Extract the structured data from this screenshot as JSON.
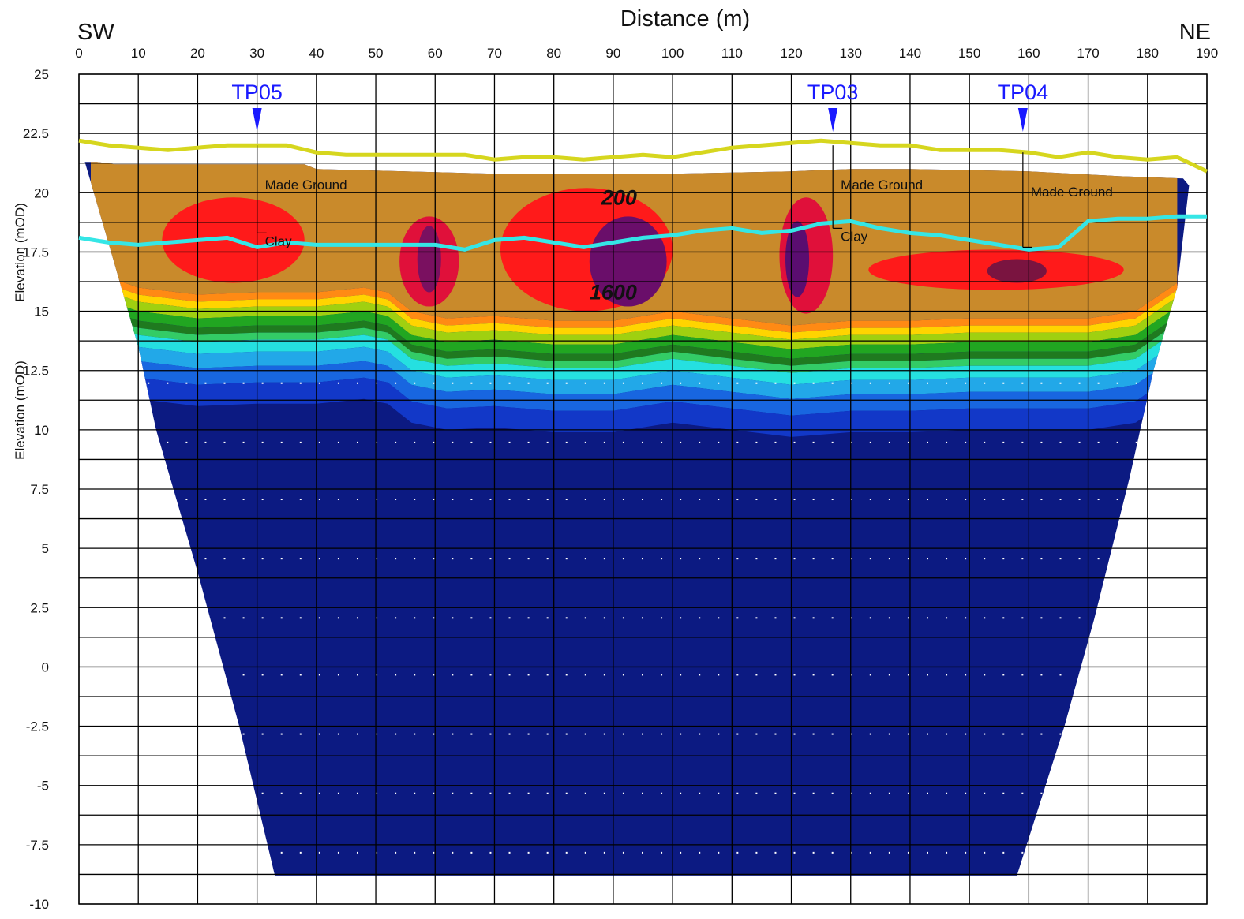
{
  "chart_data": {
    "type": "heatmap",
    "title": "Distance (m)",
    "xlabel": "Distance (m)",
    "ylabel": "Elevation (mOD)",
    "ylabel_repeat": "Elevation (mOD)",
    "direction_left": "SW",
    "direction_right": "NE",
    "xlim": [
      0,
      190
    ],
    "ylim": [
      -10,
      25
    ],
    "x_ticks": [
      {
        "v": 0,
        "label": "0"
      },
      {
        "v": 10,
        "label": "10"
      },
      {
        "v": 20,
        "label": "20"
      },
      {
        "v": 30,
        "label": "30"
      },
      {
        "v": 40,
        "label": "40"
      },
      {
        "v": 50,
        "label": "50"
      },
      {
        "v": 60,
        "label": "60"
      },
      {
        "v": 70,
        "label": "70"
      },
      {
        "v": 80,
        "label": "80"
      },
      {
        "v": 90,
        "label": "90"
      },
      {
        "v": 100,
        "label": "100"
      },
      {
        "v": 110,
        "label": "110"
      },
      {
        "v": 120,
        "label": "120"
      },
      {
        "v": 130,
        "label": "130"
      },
      {
        "v": 140,
        "label": "140"
      },
      {
        "v": 150,
        "label": "150"
      },
      {
        "v": 160,
        "label": "160"
      },
      {
        "v": 170,
        "label": "170"
      },
      {
        "v": 180,
        "label": "180"
      },
      {
        "v": 190,
        "label": "190"
      }
    ],
    "y_ticks": [
      {
        "v": 25,
        "label": "25"
      },
      {
        "v": 22.5,
        "label": "22.5"
      },
      {
        "v": 20,
        "label": "20"
      },
      {
        "v": 17.5,
        "label": "17.5"
      },
      {
        "v": 15,
        "label": "15"
      },
      {
        "v": 12.5,
        "label": "12.5"
      },
      {
        "v": 10,
        "label": "10"
      },
      {
        "v": 7.5,
        "label": "7.5"
      },
      {
        "v": 5,
        "label": "5"
      },
      {
        "v": 2.5,
        "label": "2.5"
      },
      {
        "v": 0,
        "label": "0"
      },
      {
        "v": -2.5,
        "label": "-2.5"
      },
      {
        "v": -5,
        "label": "-5"
      },
      {
        "v": -7.5,
        "label": "-7.5"
      },
      {
        "v": -10,
        "label": "-10"
      }
    ],
    "grid": true,
    "trial_pits": [
      {
        "name": "TP05",
        "x": 30,
        "top": 22.0,
        "made_ground_base": 18.3,
        "label_made_ground": "Made Ground",
        "label_clay": "Clay"
      },
      {
        "name": "TP03",
        "x": 127,
        "top": 22.0,
        "made_ground_base": 18.5,
        "label_made_ground": "Made Ground",
        "label_clay": "Clay"
      },
      {
        "name": "TP04",
        "x": 159,
        "top": 21.7,
        "made_ground_base": 17.7,
        "label_made_ground": "Made Ground",
        "label_clay": ""
      }
    ],
    "contour_labels": [
      {
        "text": "200",
        "x": 91,
        "y": 19.5
      },
      {
        "text": "1600",
        "x": 90,
        "y": 15.5
      }
    ],
    "series": [
      {
        "name": "",
        "color": "#d6d61e",
        "x": [
          0,
          5,
          10,
          15,
          20,
          25,
          30,
          35,
          40,
          45,
          50,
          55,
          60,
          65,
          70,
          75,
          80,
          85,
          90,
          95,
          100,
          105,
          110,
          115,
          120,
          125,
          130,
          135,
          140,
          145,
          150,
          155,
          160,
          165,
          170,
          175,
          180,
          185,
          190
        ],
        "y": [
          22.2,
          22.0,
          21.9,
          21.8,
          21.9,
          22.0,
          22.0,
          22.0,
          21.7,
          21.6,
          21.6,
          21.6,
          21.6,
          21.6,
          21.4,
          21.5,
          21.5,
          21.4,
          21.5,
          21.6,
          21.5,
          21.7,
          21.9,
          22.0,
          22.1,
          22.2,
          22.1,
          22.0,
          22.0,
          21.8,
          21.8,
          21.8,
          21.7,
          21.5,
          21.7,
          21.5,
          21.4,
          21.5,
          20.9
        ]
      },
      {
        "name": "",
        "color": "#35e6e6",
        "x": [
          0,
          5,
          10,
          15,
          20,
          25,
          30,
          35,
          40,
          45,
          50,
          55,
          60,
          65,
          70,
          75,
          80,
          85,
          90,
          95,
          100,
          105,
          110,
          115,
          120,
          125,
          130,
          135,
          140,
          145,
          150,
          155,
          160,
          165,
          170,
          175,
          180,
          185,
          190
        ],
        "y": [
          18.1,
          17.9,
          17.8,
          17.9,
          18.0,
          18.1,
          17.7,
          17.9,
          17.8,
          17.8,
          17.8,
          17.8,
          17.8,
          17.6,
          18.0,
          18.1,
          17.9,
          17.7,
          17.9,
          18.1,
          18.2,
          18.4,
          18.5,
          18.3,
          18.4,
          18.7,
          18.8,
          18.5,
          18.3,
          18.2,
          18.0,
          17.8,
          17.6,
          17.7,
          18.8,
          18.9,
          18.9,
          19.0,
          19.0
        ]
      }
    ],
    "section_outline": {
      "top": [
        [
          1,
          21.3
        ],
        [
          3,
          21.3
        ],
        [
          6,
          21.2
        ],
        [
          38,
          21.2
        ],
        [
          40,
          21.0
        ],
        [
          55,
          20.9
        ],
        [
          70,
          20.8
        ],
        [
          100,
          20.8
        ],
        [
          120,
          20.9
        ],
        [
          130,
          21.0
        ],
        [
          140,
          21.0
        ],
        [
          160,
          20.9
        ],
        [
          175,
          20.7
        ],
        [
          186,
          20.6
        ],
        [
          187,
          20.3
        ]
      ],
      "bottom_left": [
        [
          1,
          21.3
        ],
        [
          6,
          17.0
        ],
        [
          10,
          13.5
        ],
        [
          13,
          10.0
        ],
        [
          20,
          4.0
        ],
        [
          27,
          -2.5
        ],
        [
          33,
          -8.8
        ]
      ],
      "bottom_right": [
        [
          187,
          20.3
        ],
        [
          185,
          16.0
        ],
        [
          181,
          12.5
        ],
        [
          177,
          8.0
        ],
        [
          171,
          2.0
        ],
        [
          166,
          -2.5
        ],
        [
          158,
          -8.8
        ]
      ]
    }
  }
}
